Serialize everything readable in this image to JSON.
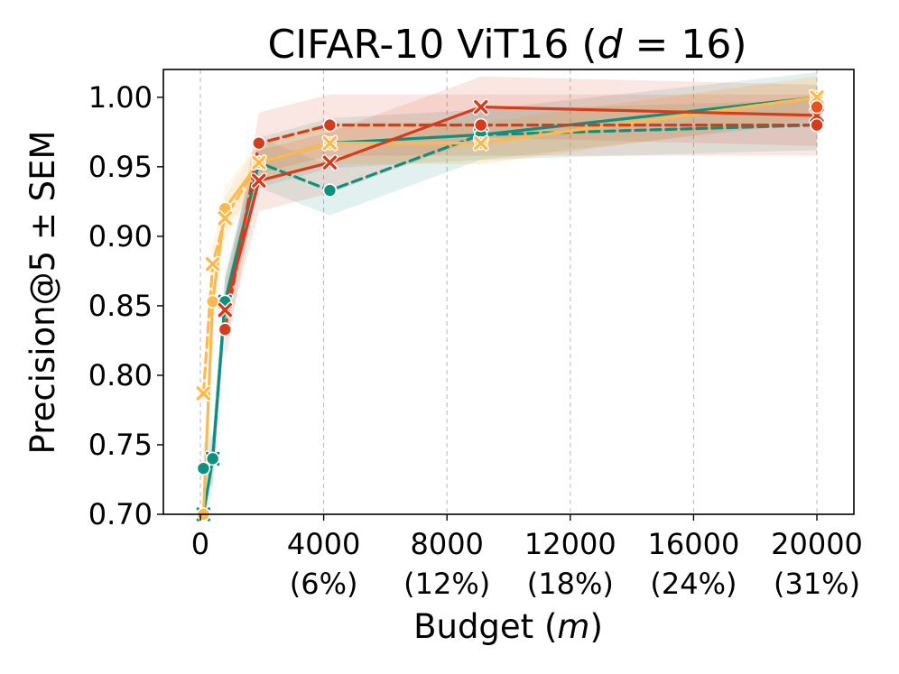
{
  "chart_data": {
    "type": "line",
    "title": "CIFAR-10 ViT16 (",
    "title_var": "d",
    "title_rest": " = 16)",
    "xlabel": "Budget (",
    "xlabel_var": "m",
    "xlabel_rest": ")",
    "ylabel": "Precision@5 ± SEM",
    "xlim": [
      -1200,
      21200
    ],
    "ylim": [
      0.7,
      1.02
    ],
    "grid": "vertical dashed",
    "x_ticks": [
      {
        "value": 0,
        "label": "0",
        "sublabel": ""
      },
      {
        "value": 4000,
        "label": "4000",
        "sublabel": "(6%)"
      },
      {
        "value": 8000,
        "label": "8000",
        "sublabel": "(12%)"
      },
      {
        "value": 12000,
        "label": "12000",
        "sublabel": "(18%)"
      },
      {
        "value": 16000,
        "label": "16000",
        "sublabel": "(24%)"
      },
      {
        "value": 20000,
        "label": "20000",
        "sublabel": "(31%)"
      }
    ],
    "y_ticks": [
      {
        "value": 0.7,
        "label": "0.70"
      },
      {
        "value": 0.75,
        "label": "0.75"
      },
      {
        "value": 0.8,
        "label": "0.80"
      },
      {
        "value": 0.85,
        "label": "0.85"
      },
      {
        "value": 0.9,
        "label": "0.90"
      },
      {
        "value": 0.95,
        "label": "0.95"
      },
      {
        "value": 1.0,
        "label": "1.00"
      }
    ],
    "series": [
      {
        "name": "teal-solid-x",
        "color": "#0f8f7f",
        "dash": "solid",
        "marker": "x",
        "err": 0.018,
        "x": [
          100,
          400,
          800,
          1900,
          4200,
          9100,
          20000
        ],
        "y": [
          0.7,
          0.74,
          0.853,
          0.953,
          0.967,
          0.973,
          1.0
        ]
      },
      {
        "name": "teal-dashed-o",
        "color": "#0f8f7f",
        "dash": "dashed",
        "marker": "o",
        "err": 0.018,
        "x": [
          100,
          400,
          800,
          1900,
          4200,
          9100,
          20000
        ],
        "y": [
          0.733,
          0.74,
          0.853,
          0.953,
          0.933,
          0.973,
          0.98
        ]
      },
      {
        "name": "orange-solid-o",
        "color": "#fdb94e",
        "dash": "solid",
        "marker": "o",
        "err": 0.015,
        "x": [
          100,
          400,
          800,
          1900,
          4200,
          9100,
          20000
        ],
        "y": [
          0.7,
          0.853,
          0.92,
          0.953,
          0.967,
          0.967,
          1.0
        ]
      },
      {
        "name": "orange-dashed-x",
        "color": "#fdb94e",
        "dash": "dashed",
        "marker": "x",
        "err": 0.015,
        "x": [
          100,
          400,
          800,
          1900,
          4200,
          9100,
          20000
        ],
        "y": [
          0.787,
          0.88,
          0.913,
          0.953,
          0.967,
          0.967,
          1.0
        ]
      },
      {
        "name": "red-solid-x",
        "color": "#d63c1c",
        "dash": "solid",
        "marker": "x",
        "err": 0.022,
        "x": [
          800,
          1900,
          4200,
          9100,
          20000
        ],
        "y": [
          0.847,
          0.94,
          0.953,
          0.993,
          0.987
        ]
      },
      {
        "name": "red-dashed-o",
        "color": "#d63c1c",
        "dash": "dashed",
        "marker": "o",
        "err": 0.022,
        "x": [
          800,
          1900,
          4200,
          9100,
          20000
        ],
        "y": [
          0.833,
          0.967,
          0.98,
          0.98,
          0.98
        ]
      },
      {
        "name": "redorange-dashed-o",
        "color": "#e8501e",
        "dash": "dashed",
        "marker": "o",
        "err": 0.015,
        "x": [
          20000
        ],
        "y": [
          0.993
        ]
      }
    ]
  }
}
